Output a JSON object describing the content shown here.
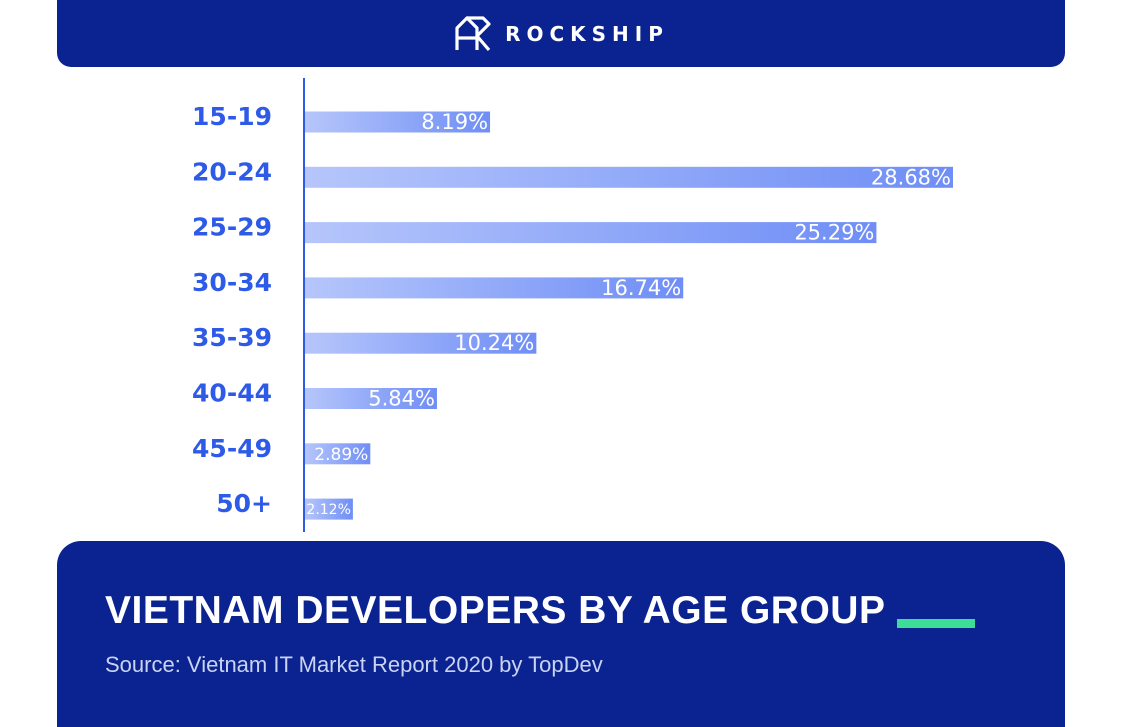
{
  "header": {
    "brand": "ROCKSHIP",
    "logo_icon": "rockship-logo-icon"
  },
  "footer": {
    "title": "VIETNAM DEVELOPERS BY AGE GROUP",
    "source": "Source: Vietnam IT Market Report 2020 by TopDev"
  },
  "colors": {
    "navy": "#0b2391",
    "accent": "#3ddc97",
    "label_blue": "#2e5ae8",
    "bar_light": "#b6c6fb",
    "bar_dark": "#6f8ef6"
  },
  "chart_data": {
    "type": "bar",
    "orientation": "horizontal",
    "categories": [
      "15-19",
      "20-24",
      "25-29",
      "30-34",
      "35-39",
      "40-44",
      "45-49",
      "50+"
    ],
    "values": [
      8.19,
      28.68,
      25.29,
      16.74,
      10.24,
      5.84,
      2.89,
      2.12
    ],
    "value_labels": [
      "8.19%",
      "28.68%",
      "25.29%",
      "16.74%",
      "10.24%",
      "5.84%",
      "2.89%",
      "2.12%"
    ],
    "unit": "%",
    "xlim": [
      0,
      28.68
    ],
    "grid": false,
    "legend": "none"
  }
}
